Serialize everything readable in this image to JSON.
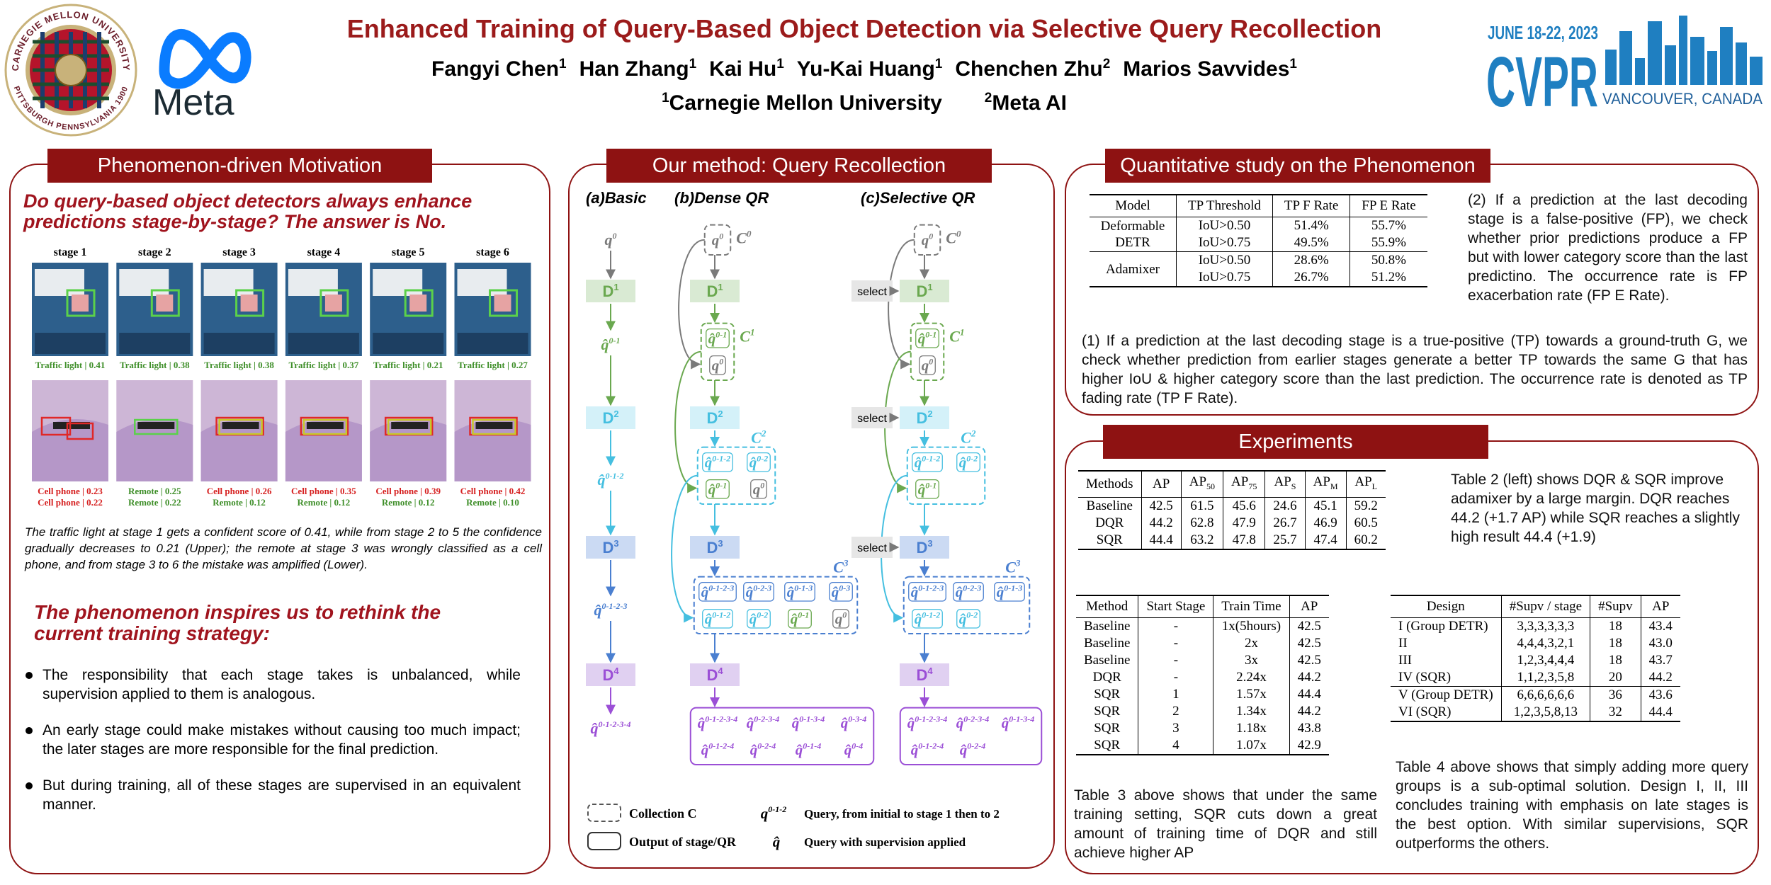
{
  "header": {
    "title": "Enhanced Training of Query-Based Object Detection via Selective Query Recollection",
    "authors": [
      {
        "name": "Fangyi Chen",
        "sup": "1"
      },
      {
        "name": "Han Zhang",
        "sup": "1"
      },
      {
        "name": "Kai Hu",
        "sup": "1"
      },
      {
        "name": "Yu-Kai Huang",
        "sup": "1"
      },
      {
        "name": "Chenchen Zhu",
        "sup": "2"
      },
      {
        "name": "Marios Savvides",
        "sup": "1"
      }
    ],
    "affiliations": [
      {
        "sup": "1",
        "name": "Carnegie Mellon University"
      },
      {
        "sup": "2",
        "name": "Meta AI"
      }
    ],
    "logos": {
      "cmu_top": "CARNEGIE MELLON UNIVERSITY",
      "cmu_bottom": "PITTSBURGH PENNSYLVANIA 1900",
      "meta": "Meta",
      "cvpr_date": "JUNE 18-22, 2023",
      "cvpr": "CVPR",
      "cvpr_place": "VANCOUVER, CANADA"
    }
  },
  "motivation": {
    "heading": "Phenomenon-driven Motivation",
    "question": "Do query-based object detectors always enhance predictions stage-by-stage? The answer is No.",
    "stages": [
      "stage 1",
      "stage 2",
      "stage 3",
      "stage 4",
      "stage 5",
      "stage 6"
    ],
    "upper_captions": [
      "Traffic light | 0.41",
      "Traffic light | 0.38",
      "Traffic light | 0.38",
      "Traffic light | 0.37",
      "Traffic light | 0.21",
      "Traffic light | 0.27"
    ],
    "lower_captions": [
      [
        "Cell phone | 0.23",
        "Cell phone | 0.22"
      ],
      [
        "Remote | 0.25",
        "Remote | 0.22"
      ],
      [
        "Cell phone | 0.26",
        "Remote | 0.12"
      ],
      [
        "Cell phone | 0.35",
        "Remote | 0.12"
      ],
      [
        "Cell phone | 0.39",
        "Remote | 0.12"
      ],
      [
        "Cell phone | 0.42",
        "Remote | 0.10"
      ]
    ],
    "caption": "The traffic light at stage 1 gets a confident score of 0.41, while from stage 2 to 5 the confidence gradually decreases to 0.21 (Upper); the remote at stage 3 was wrongly classified as a cell phone, and from stage 3 to 6 the mistake was amplified (Lower).",
    "subheading": "The phenomenon inspires us to rethink the current training strategy:",
    "bullets": [
      "The responsibility that each stage takes is unbalanced, while supervision applied to them is analogous.",
      "An early stage could make mistakes without causing too much impact; the later stages are more responsible for the final prediction.",
      "But during training, all of these stages are supervised in an equivalent manner."
    ]
  },
  "method": {
    "heading": "Our method: Query Recollection",
    "columns": [
      "(a)Basic",
      "(b)Dense QR",
      "(c)Selective QR"
    ],
    "decoders": [
      {
        "base": "D",
        "sup": "1"
      },
      {
        "base": "D",
        "sup": "2"
      },
      {
        "base": "D",
        "sup": "3"
      },
      {
        "base": "D",
        "sup": "4"
      }
    ],
    "basic": {
      "queries": [
        {
          "q": "q",
          "sup": "0"
        },
        {
          "q": "q̂",
          "sup": "0-1"
        },
        {
          "q": "q̂",
          "sup": "0-1-2"
        },
        {
          "q": "q̂",
          "sup": "0-1-2-3"
        },
        {
          "q": "q̂",
          "sup": "0-1-2-3-4"
        }
      ]
    },
    "dense": {
      "collections": [
        {
          "base": "C",
          "sup": "0"
        },
        {
          "base": "C",
          "sup": "1"
        },
        {
          "base": "C",
          "sup": "2"
        },
        {
          "base": "C",
          "sup": "3"
        }
      ],
      "groups": [
        [
          {
            "q": "q",
            "sup": "0"
          }
        ],
        [
          {
            "q": "q̂",
            "sup": "0-1"
          },
          {
            "q": "q",
            "sup": "0"
          }
        ],
        [
          {
            "q": "q̂",
            "sup": "0-1-2"
          },
          {
            "q": "q̂",
            "sup": "0-2"
          },
          {
            "q": "q̂",
            "sup": "0-1"
          },
          {
            "q": "q",
            "sup": "0"
          }
        ],
        [
          {
            "q": "q̂",
            "sup": "0-1-2-3"
          },
          {
            "q": "q̂",
            "sup": "0-2-3"
          },
          {
            "q": "q̂",
            "sup": "0-1-3"
          },
          {
            "q": "q̂",
            "sup": "0-3"
          },
          {
            "q": "q̂",
            "sup": "0-1-2"
          },
          {
            "q": "q̂",
            "sup": "0-2"
          },
          {
            "q": "q̂",
            "sup": "0-1"
          },
          {
            "q": "q",
            "sup": "0"
          }
        ]
      ],
      "outputs": [
        {
          "q": "q̂",
          "sup": "0-1-2-3-4"
        },
        {
          "q": "q̂",
          "sup": "0-2-3-4"
        },
        {
          "q": "q̂",
          "sup": "0-1-3-4"
        },
        {
          "q": "q̂",
          "sup": "0-3-4"
        },
        {
          "q": "q̂",
          "sup": "0-1-2-4"
        },
        {
          "q": "q̂",
          "sup": "0-2-4"
        },
        {
          "q": "q̂",
          "sup": "0-1-4"
        },
        {
          "q": "q̂",
          "sup": "0-4"
        }
      ]
    },
    "selective": {
      "select_labels": [
        "select",
        "select",
        "select"
      ],
      "collections": [
        {
          "base": "C",
          "sup": "0"
        },
        {
          "base": "C",
          "sup": "1"
        },
        {
          "base": "C",
          "sup": "2"
        },
        {
          "base": "C",
          "sup": "3"
        }
      ],
      "groups": [
        [
          {
            "q": "q",
            "sup": "0"
          }
        ],
        [
          {
            "q": "q̂",
            "sup": "0-1"
          },
          {
            "q": "q",
            "sup": "0"
          }
        ],
        [
          {
            "q": "q̂",
            "sup": "0-1-2"
          },
          {
            "q": "q̂",
            "sup": "0-2"
          },
          {
            "q": "q̂",
            "sup": "0-1"
          }
        ],
        [
          {
            "q": "q̂",
            "sup": "0-1-2-3"
          },
          {
            "q": "q̂",
            "sup": "0-2-3"
          },
          {
            "q": "q̂",
            "sup": "0-1-3"
          },
          {
            "q": "q̂",
            "sup": "0-1-2"
          },
          {
            "q": "q̂",
            "sup": "0-2"
          }
        ]
      ],
      "outputs": [
        {
          "q": "q̂",
          "sup": "0-1-2-3-4"
        },
        {
          "q": "q̂",
          "sup": "0-2-3-4"
        },
        {
          "q": "q̂",
          "sup": "0-1-3-4"
        },
        {
          "q": "q̂",
          "sup": "0-1-2-4"
        },
        {
          "q": "q̂",
          "sup": "0-2-4"
        }
      ]
    },
    "legend": {
      "collection": "Collection C",
      "output": "Output of stage/QR",
      "query_example": {
        "q": "q",
        "sup": "0-1-2"
      },
      "query_desc": "Query, from initial to stage 1 then to 2",
      "hat_symbol": "q̂",
      "hat_desc": "Query with supervision applied"
    }
  },
  "quantitative": {
    "heading": "Quantitative study on the Phenomenon",
    "table": {
      "columns": [
        "Model",
        "TP Threshold",
        "TP F Rate",
        "FP E Rate"
      ],
      "groups": [
        {
          "name": "Deformable DETR",
          "rows": [
            [
              "IoU>0.50",
              "51.4%",
              "55.7%"
            ],
            [
              "IoU>0.75",
              "49.5%",
              "55.9%"
            ]
          ]
        },
        {
          "name": "Adamixer",
          "rows": [
            [
              "IoU>0.50",
              "28.6%",
              "50.8%"
            ],
            [
              "IoU>0.75",
              "26.7%",
              "51.2%"
            ]
          ]
        }
      ]
    },
    "text_fp": "(2) If a prediction at the last decoding stage is a false-positive (FP), we check whether prior predictions produce a FP but with lower category score than the last predictino. The occurrence rate is FP exacerbation rate (FP E Rate).",
    "text_tp": "(1) If a prediction at the last decoding stage is a true-positive (TP) towards a ground-truth G, we check whether prediction from earlier stages generate a better TP towards the same G that has higher IoU & higher category score than the last prediction. The occurrence rate is denoted as TP fading rate (TP F Rate)."
  },
  "experiments": {
    "heading": "Experiments",
    "table2": {
      "columns": [
        "Methods",
        "AP",
        {
          "text": "AP",
          "sub": "50"
        },
        {
          "text": "AP",
          "sub": "75"
        },
        {
          "text": "AP",
          "sub": "S"
        },
        {
          "text": "AP",
          "sub": "M"
        },
        {
          "text": "AP",
          "sub": "L"
        }
      ],
      "groups": [
        [
          [
            "Baseline",
            "42.5",
            "61.5",
            "45.6",
            "24.6",
            "45.1",
            "59.2"
          ],
          [
            "DQR",
            "44.2",
            "62.8",
            "47.9",
            "26.7",
            "46.9",
            "60.5"
          ],
          [
            "SQR",
            "44.4",
            "63.2",
            "47.8",
            "25.7",
            "47.4",
            "60.2"
          ]
        ]
      ]
    },
    "text2": "Table 2 (left) shows DQR & SQR improve adamixer by a large margin. DQR reaches 44.2 (+1.7 AP) while SQR reaches a slightly high result 44.4 (+1.9)",
    "table3": {
      "columns": [
        "Method",
        "Start Stage",
        "Train Time",
        "AP"
      ],
      "groups": [
        [
          [
            "Baseline",
            "-",
            "1x(5hours)",
            "42.5"
          ],
          [
            "Baseline",
            "-",
            "2x",
            "42.5"
          ],
          [
            "Baseline",
            "-",
            "3x",
            "42.5"
          ],
          [
            "DQR",
            "-",
            "2.24x",
            "44.2"
          ],
          [
            "SQR",
            "1",
            "1.57x",
            "44.4"
          ],
          [
            "SQR",
            "2",
            "1.34x",
            "44.2"
          ],
          [
            "SQR",
            "3",
            "1.18x",
            "43.8"
          ],
          [
            "SQR",
            "4",
            "1.07x",
            "42.9"
          ]
        ]
      ]
    },
    "text3": "Table 3 above shows that under the same training setting, SQR cuts down a great amount of training time of DQR and still achieve higher AP",
    "table4": {
      "columns": [
        "Design",
        "#Supv / stage",
        "#Supv",
        "AP"
      ],
      "groups": [
        [
          [
            "I (Group DETR)",
            "3,3,3,3,3,3",
            "18",
            "43.4"
          ],
          [
            "II",
            "4,4,4,3,2,1",
            "18",
            "43.0"
          ],
          [
            "III",
            "1,2,3,4,4,4",
            "18",
            "43.7"
          ],
          [
            "IV (SQR)",
            "1,1,2,3,5,8",
            "20",
            "44.2"
          ]
        ],
        [
          [
            "V (Group DETR)",
            "6,6,6,6,6,6",
            "36",
            "43.6"
          ],
          [
            "VI (SQR)",
            "1,2,3,5,8,13",
            "32",
            "44.4"
          ]
        ]
      ]
    },
    "text4": "Table 4 above shows that simply adding more query groups is a sub-optimal solution. Design I, II, III concludes training with emphasis on late stages is the best option. With similar supervisions, SQR outperforms the others."
  }
}
